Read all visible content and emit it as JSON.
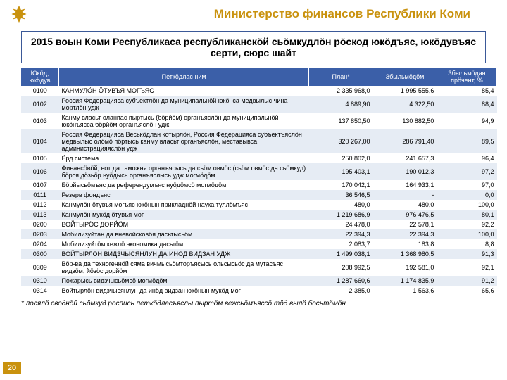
{
  "header": {
    "title": "Министерство финансов Республики Коми",
    "subtitle": "2015 воын Коми Республикаса республиканскӧй сьӧмкудлӧн рӧскод юкӧдъяс, юкӧдувъяс серти, сюрс шайт"
  },
  "table": {
    "columns": [
      "Юкӧд, юкӧдув",
      "Петкӧдлас ним",
      "План*",
      "Збыльмӧдӧм",
      "Збыльмӧдан прӧчент, %"
    ],
    "rows": [
      [
        "0100",
        "КАНМУЛӦН ӦТУВЪЯ МОГЪЯС",
        "2 335 968,0",
        "1 995 555,6",
        "85,4"
      ],
      [
        "0102",
        "Россия Федерацияса субъектлӧн да муниципальнӧй юкӧнса медвылыс чина мортлӧн удж",
        "4 889,90",
        "4 322,50",
        "88,4"
      ],
      [
        "0103",
        "Канму власьт оланпас пыртысь (бӧрйӧм) органъяслӧн да муниципальнӧй юкӧнъясса бӧрйӧм органъяслӧн удж",
        "137 850,50",
        "130 882,50",
        "94,9"
      ],
      [
        "0104",
        "Россия Федерацияса Веськӧдлан котырлӧн, Россия Федерацияса субъектъяслӧн медвылыс олӧмӧ пӧртысь канму власьт органъяслӧн, меставывса администрацияяслӧн удж",
        "320 267,00",
        "286 791,40",
        "89,5"
      ],
      [
        "0105",
        "Ёрд система",
        "250 802,0",
        "241 657,3",
        "96,4"
      ],
      [
        "0106",
        "Финансӧвӧй, вот да таможня органъясысь да сьӧм овмӧс (сьӧм овмӧс да сьӧмкуд) бӧрся дӧзьӧр нуӧдысь органъяслысь удж могмӧдӧм",
        "195 403,1",
        "190 012,3",
        "97,2"
      ],
      [
        "0107",
        "Бӧрйысьӧмъяс да референдумъяс нуӧдӧмсӧ могмӧдӧм",
        "170 042,1",
        "164 933,1",
        "97,0"
      ],
      [
        "0111",
        "Резерв фондъяс",
        "36 546,5",
        "-",
        "0,0"
      ],
      [
        "0112",
        "Канмулӧн ӧтувъя могъяс юкӧнын прикладнӧй наука туллӧмъяс",
        "480,0",
        "480,0",
        "100,0"
      ],
      [
        "0113",
        "Канмулӧн мукӧд ӧтувъя мог",
        "1 219 686,9",
        "976 476,5",
        "80,1"
      ],
      [
        "0200",
        "ВОЙТЫРӦС ДОРЙӦМ",
        "24 478,0",
        "22 578,1",
        "92,2"
      ],
      [
        "0203",
        "Мобилизуйтан да вневойсковӧя дасьтысьӧм",
        "22 394,3",
        "22 394,3",
        "100,0"
      ],
      [
        "0204",
        "Мобилизуйтӧм кежлӧ экономика дасьтӧм",
        "2 083,7",
        "183,8",
        "8,8"
      ],
      [
        "0300",
        "ВОЙТЫРЛӦН ВИДЗЧЫСЯНЛУН ДА ИНӦД ВИДЗАН УДЖ",
        "1 499 038,1",
        "1 368 980,5",
        "91,3"
      ],
      [
        "0309",
        "Вӧр-ва да техногеннӧй сяма вичмысьӧмторъясысь ольсысьӧс да мутасъяс видзӧм, йӧзӧс дорйӧм",
        "208 992,5",
        "192 581,0",
        "92,1"
      ],
      [
        "0310",
        "Пожарысь видзчысьӧмсӧ могмӧдӧм",
        "1 287 660,6",
        "1 174 835,9",
        "91,2"
      ],
      [
        "0314",
        "Войтырлӧн видзчысянлун да инӧд видзан юкӧнын мукӧд мог",
        "2 385,0",
        "1 563,6",
        "65,6"
      ]
    ]
  },
  "footnote": "* лосялӧ своднӧй сьӧмкуд роспись петкӧдласъяслы пыртӧм вежсьӧмъяссӧ тӧд вылӧ босьтӧмӧн",
  "page": "20",
  "colors": {
    "gold": "#c9920e",
    "blue": "#3b5fa8",
    "row_alt": "#e6ecf4"
  }
}
